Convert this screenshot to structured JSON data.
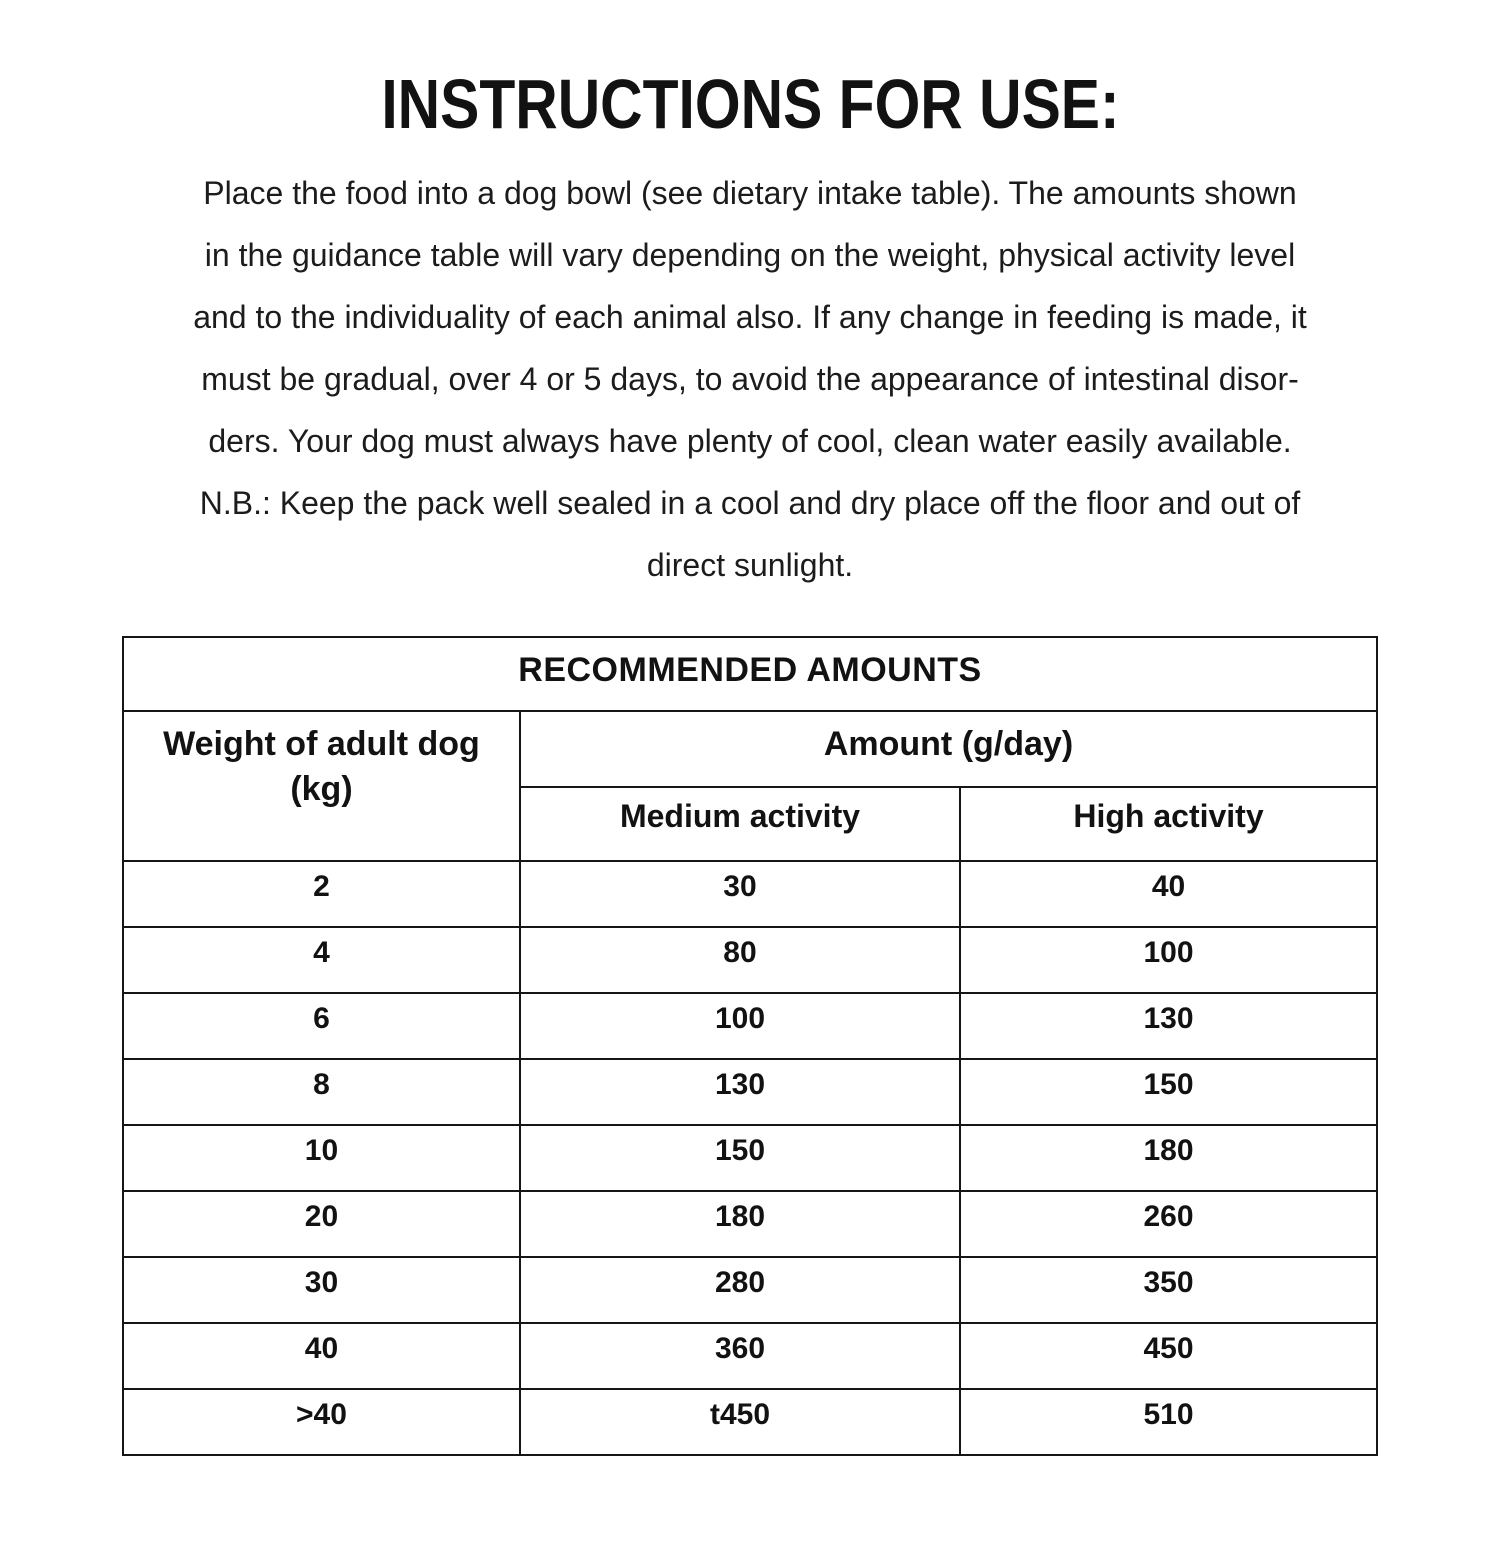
{
  "page": {
    "title": "INSTRUCTIONS FOR USE:"
  },
  "instructions": {
    "lines": [
      "Place the food into a dog bowl (see dietary intake table). The amounts shown",
      "in the guidance table will vary depending on the weight, physical activity level",
      "and to the individuality of each animal also. If any change in feeding is made, it",
      "must be gradual, over 4 or 5 days, to avoid the appearance of intestinal disor-",
      "ders. Your dog must always have plenty of cool, clean water easily available.",
      "N.B.: Keep the pack well sealed in a cool and dry place off the floor and out of",
      "direct sunlight."
    ]
  },
  "table": {
    "title": "RECOMMENDED AMOUNTS",
    "weight_header": "Weight of adult dog (kg)",
    "amount_header": "Amount (g/day)",
    "medium_header": "Medium activity",
    "high_header": "High activity",
    "rows": [
      {
        "weight": "2",
        "medium": "30",
        "high": "40"
      },
      {
        "weight": "4",
        "medium": "80",
        "high": "100"
      },
      {
        "weight": "6",
        "medium": "100",
        "high": "130"
      },
      {
        "weight": "8",
        "medium": "130",
        "high": "150"
      },
      {
        "weight": "10",
        "medium": "150",
        "high": "180"
      },
      {
        "weight": "20",
        "medium": "180",
        "high": "260"
      },
      {
        "weight": "30",
        "medium": "280",
        "high": "350"
      },
      {
        "weight": "40",
        "medium": "360",
        "high": "450"
      },
      {
        "weight": ">40",
        "medium": "t450",
        "high": "510"
      }
    ]
  },
  "colors": {
    "text": "#121212",
    "border": "#161616",
    "background": "#ffffff"
  }
}
